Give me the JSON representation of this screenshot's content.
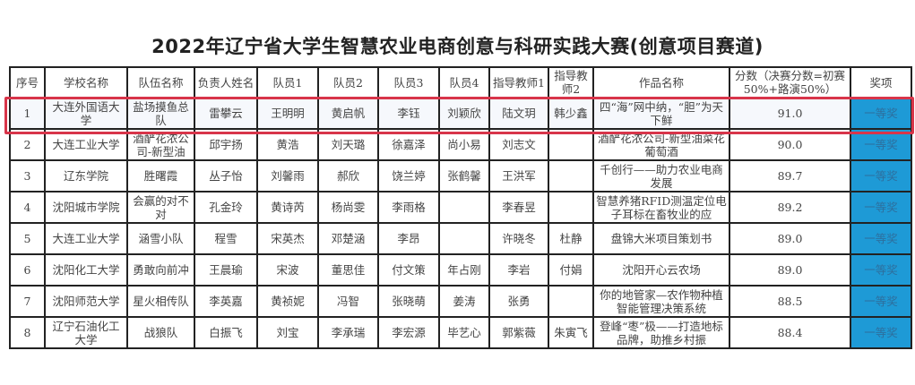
{
  "title": "2022年辽宁省大学生智慧农业电商创意与科研实践大赛(创意项目赛道)",
  "colors": {
    "award_bg": "#1e9ad6",
    "highlight_border": "#d8354a"
  },
  "headers": [
    "序号",
    "学校名称",
    "队伍名称",
    "负责人姓名",
    "队员1",
    "队员2",
    "队员3",
    "队员4",
    "指导教师1",
    "指导教师2",
    "作品名称",
    "分数（决赛分数=初赛50%+路演50%）",
    "奖项"
  ],
  "rows": [
    [
      "1",
      "大连外国语大学",
      "盐场摸鱼总队",
      "雷攀云",
      "王明明",
      "黄启帆",
      "李钰",
      "刘颖欣",
      "陆文玥",
      "韩少鑫",
      "四“海”网中纳，“胆”为天下鲜",
      "91.0",
      "一等奖"
    ],
    [
      "2",
      "大连工业大学",
      "酒酽花浓公司-新型油",
      "邱宇扬",
      "黄浩",
      "刘天璐",
      "徐嘉泽",
      "尚小易",
      "刘志文",
      "",
      "酒酽花浓公司-新型油菜花葡萄酒",
      "90.0",
      "一等奖"
    ],
    [
      "3",
      "辽东学院",
      "胜曙霞",
      "丛子怡",
      "刘馨雨",
      "郝欣",
      "饶兰婷",
      "张鹤馨",
      "王洪军",
      "",
      "千创行——助力农业电商发展",
      "89.7",
      "一等奖"
    ],
    [
      "4",
      "沈阳城市学院",
      "会赢的对不对",
      "孔金玲",
      "黄诗芮",
      "杨尚雯",
      "李雨格",
      "",
      "李春昱",
      "",
      "智慧养猪RFID测温定位电子耳标在畜牧业的应",
      "89.2",
      "一等奖"
    ],
    [
      "5",
      "大连工业大学",
      "涵雪小队",
      "程雪",
      "宋英杰",
      "邓楚涵",
      "李昂",
      "",
      "许晓冬",
      "杜静",
      "盘锦大米项目策划书",
      "89.0",
      "一等奖"
    ],
    [
      "6",
      "沈阳化工大学",
      "勇敢向前冲",
      "王晨瑜",
      "宋波",
      "董思佳",
      "付文策",
      "年占刚",
      "李岩",
      "付娟",
      "沈阳开心云农场",
      "89.0",
      "一等奖"
    ],
    [
      "7",
      "沈阳师范大学",
      "星火相传队",
      "李英嘉",
      "黄祯妮",
      "冯智",
      "张晓萌",
      "姜涛",
      "张勇",
      "",
      "你的地管家—农作物种植智能管理决策系统",
      "88.5",
      "一等奖"
    ],
    [
      "8",
      "辽宁石油化工大学",
      "战狼队",
      "白振飞",
      "刘宝",
      "李承瑞",
      "李宏源",
      "毕艺心",
      "郭紫薇",
      "朱寅飞",
      "登峰“枣”极——打造地标品牌，助推乡村振",
      "88.4",
      "一等奖"
    ]
  ]
}
